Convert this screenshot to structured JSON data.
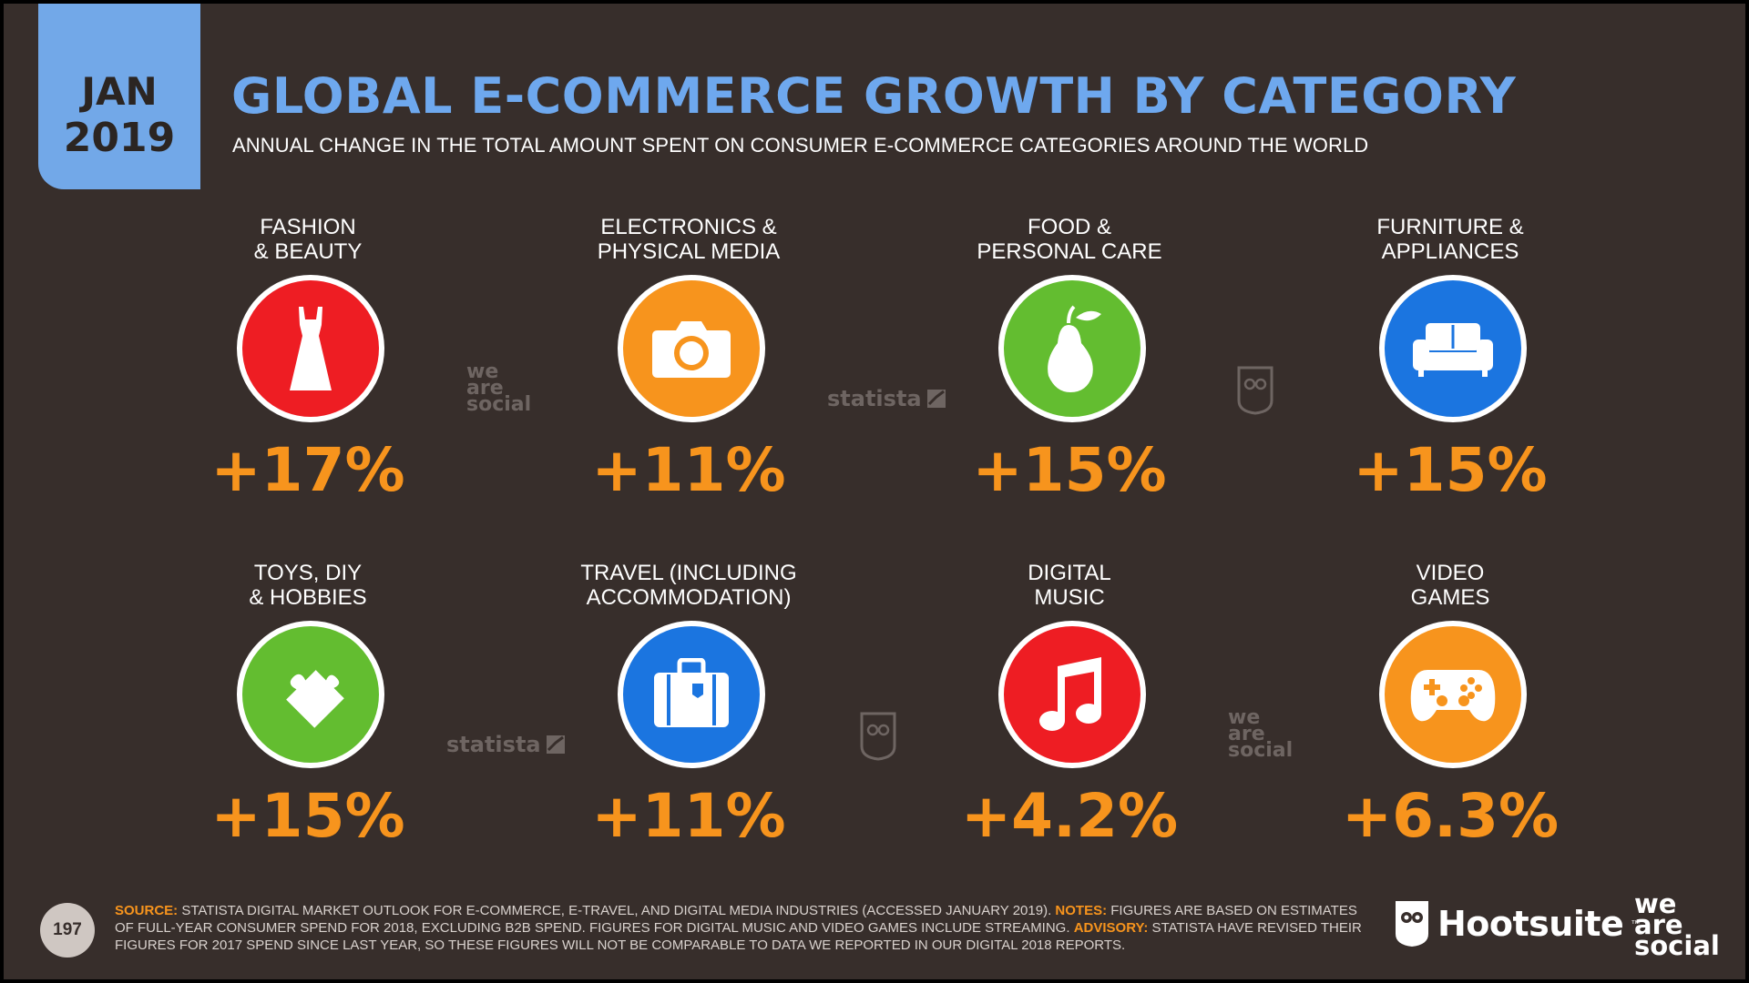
{
  "header": {
    "month": "JAN",
    "year": "2019",
    "title": "GLOBAL E-COMMERCE GROWTH BY CATEGORY",
    "subtitle": "ANNUAL CHANGE IN THE TOTAL AMOUNT SPENT ON CONSUMER E-COMMERCE CATEGORIES AROUND THE WORLD"
  },
  "categories": [
    {
      "label_line1": "FASHION",
      "label_line2": "& BEAUTY",
      "value": "+17%",
      "color": "#ee1d23",
      "icon": "dress-icon"
    },
    {
      "label_line1": "ELECTRONICS &",
      "label_line2": "PHYSICAL MEDIA",
      "value": "+11%",
      "color": "#f7941d",
      "icon": "camera-icon"
    },
    {
      "label_line1": "FOOD &",
      "label_line2": "PERSONAL CARE",
      "value": "+15%",
      "color": "#63bd30",
      "icon": "pear-icon"
    },
    {
      "label_line1": "FURNITURE &",
      "label_line2": "APPLIANCES",
      "value": "+15%",
      "color": "#1b75e0",
      "icon": "sofa-icon"
    },
    {
      "label_line1": "TOYS, DIY",
      "label_line2": "& HOBBIES",
      "value": "+15%",
      "color": "#63bd30",
      "icon": "puzzle-icon"
    },
    {
      "label_line1": "TRAVEL (INCLUDING",
      "label_line2": "ACCOMMODATION)",
      "value": "+11%",
      "color": "#1b75e0",
      "icon": "suitcase-icon"
    },
    {
      "label_line1": "DIGITAL",
      "label_line2": "MUSIC",
      "value": "+4.2%",
      "color": "#ee1d23",
      "icon": "music-note-icon"
    },
    {
      "label_line1": "VIDEO",
      "label_line2": "GAMES",
      "value": "+6.3%",
      "color": "#f7941d",
      "icon": "gamepad-icon"
    }
  ],
  "watermarks": {
    "we": "we",
    "are": "are",
    "social": "social",
    "statista": "statista"
  },
  "footer": {
    "page_number": "197",
    "source_label": "SOURCE:",
    "source_text": " STATISTA DIGITAL MARKET OUTLOOK FOR E-COMMERCE, E-TRAVEL, AND DIGITAL MEDIA INDUSTRIES (ACCESSED JANUARY 2019). ",
    "notes_label": "NOTES:",
    "notes_text": " FIGURES ARE BASED ON ESTIMATES OF FULL-YEAR CONSUMER SPEND FOR 2018, EXCLUDING B2B SPEND. FIGURES FOR DIGITAL MUSIC AND VIDEO GAMES INCLUDE STREAMING. ",
    "advisory_label": "ADVISORY:",
    "advisory_text": " STATISTA HAVE REVISED THEIR FIGURES FOR 2017 SPEND SINCE LAST YEAR, SO THESE FIGURES WILL NOT BE COMPARABLE TO DATA WE REPORTED IN OUR DIGITAL 2018 REPORTS."
  },
  "branding": {
    "hootsuite": "Hootsuite",
    "tm": "™",
    "was_we": "we",
    "was_are": "are",
    "was_social": "social"
  }
}
